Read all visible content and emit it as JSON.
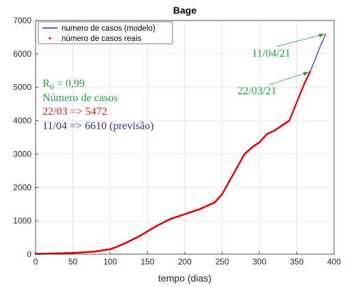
{
  "chart_data": {
    "type": "line",
    "title": "Bage",
    "xlabel": "tempo (dias)",
    "ylabel": "",
    "xlim": [
      0,
      400
    ],
    "ylim": [
      0,
      7000
    ],
    "x_ticks": [
      0,
      50,
      100,
      150,
      200,
      250,
      300,
      350,
      400
    ],
    "y_ticks": [
      0,
      1000,
      2000,
      3000,
      4000,
      5000,
      6000,
      7000
    ],
    "grid": true,
    "legend_position": "top-left",
    "series": [
      {
        "name": "numero de casos (modelo)",
        "color": "#0000aa",
        "style": "line",
        "x": [
          0,
          20,
          40,
          60,
          80,
          100,
          110,
          120,
          140,
          160,
          180,
          200,
          220,
          240,
          250,
          260,
          270,
          280,
          290,
          300,
          310,
          320,
          330,
          340,
          350,
          360,
          368,
          375,
          380,
          385,
          389
        ],
        "y": [
          10,
          20,
          30,
          50,
          80,
          150,
          230,
          330,
          550,
          820,
          1050,
          1200,
          1350,
          1550,
          1800,
          2200,
          2600,
          3000,
          3200,
          3350,
          3600,
          3700,
          3850,
          4000,
          4550,
          5100,
          5472,
          5850,
          6150,
          6400,
          6610
        ]
      },
      {
        "name": "número de casos reais",
        "color": "#e00000",
        "style": "markers",
        "x": [
          0,
          20,
          40,
          60,
          80,
          100,
          110,
          120,
          140,
          160,
          180,
          200,
          220,
          240,
          250,
          260,
          270,
          280,
          290,
          300,
          310,
          320,
          330,
          340,
          350,
          360,
          368
        ],
        "y": [
          10,
          20,
          30,
          50,
          80,
          150,
          230,
          330,
          550,
          820,
          1050,
          1200,
          1350,
          1550,
          1800,
          2200,
          2600,
          3000,
          3200,
          3350,
          3600,
          3700,
          3850,
          4000,
          4550,
          5100,
          5472
        ]
      }
    ],
    "annotations": {
      "r0_label": "R",
      "r0_sub": "0",
      "r0_value": " = 0,99",
      "cases_heading": "Número de casos",
      "real_line": "22/03 => 5472",
      "forecast_line": "11/04 => 6610 (previsão)",
      "arrow_top_label": "11/04/21",
      "arrow_bottom_label": "22/03/21",
      "arrow_top_target": [
        389,
        6610
      ],
      "arrow_bottom_target": [
        368,
        5472
      ],
      "green": "#22a33a",
      "red": "#d42020",
      "blue": "#3030a0"
    }
  }
}
